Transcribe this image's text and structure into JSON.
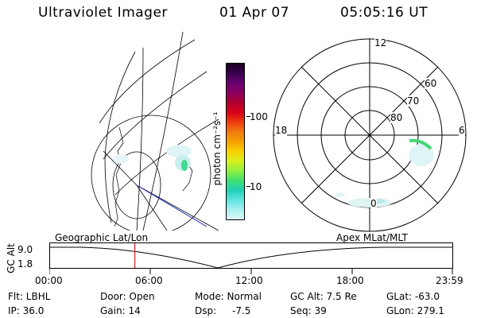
{
  "header": {
    "instrument": "Ultraviolet Imager",
    "date": "01 Apr 07",
    "time": "05:05:16 UT"
  },
  "colorbar": {
    "label": "photon cm⁻²s⁻¹",
    "ticks": [
      "100",
      "10"
    ],
    "colors": [
      "#1a0020",
      "#3a0050",
      "#6a0070",
      "#8a0060",
      "#b00030",
      "#d80018",
      "#ee3a10",
      "#f07a10",
      "#f4a000",
      "#f8d000",
      "#d8f020",
      "#90f040",
      "#40e070",
      "#20d0b8",
      "#60e4e0",
      "#a8f0f0",
      "#dff8f8"
    ]
  },
  "polar_plot": {
    "time_labels": {
      "top": "12",
      "left": "18",
      "right": "6",
      "bottom": "0"
    },
    "lat_labels": [
      "60",
      "70",
      "80"
    ]
  },
  "timeline": {
    "ylabel": "GC Alt",
    "ytick_top": "9.0",
    "ytick_bottom": "1.8",
    "label_left": "Geographic Lat/Lon",
    "label_right": "Apex MLat/MLT",
    "xticks": [
      "00:00",
      "06:00",
      "12:00",
      "18:00",
      "23:59"
    ],
    "marker_time": "05:05:16"
  },
  "info": {
    "filter": "Flt: LBHL",
    "ip": "IP: 36.0",
    "door": "Door: Open",
    "gain": "Gain: 14",
    "mode": "Mode: Normal",
    "dsp_label": "Dsp:",
    "dsp_value": "-7.5",
    "gc_alt": "GC Alt: 7.5 Re",
    "seq": "Seq: 39",
    "glat": "GLat: -63.0",
    "glon": "GLon: 279.1"
  }
}
